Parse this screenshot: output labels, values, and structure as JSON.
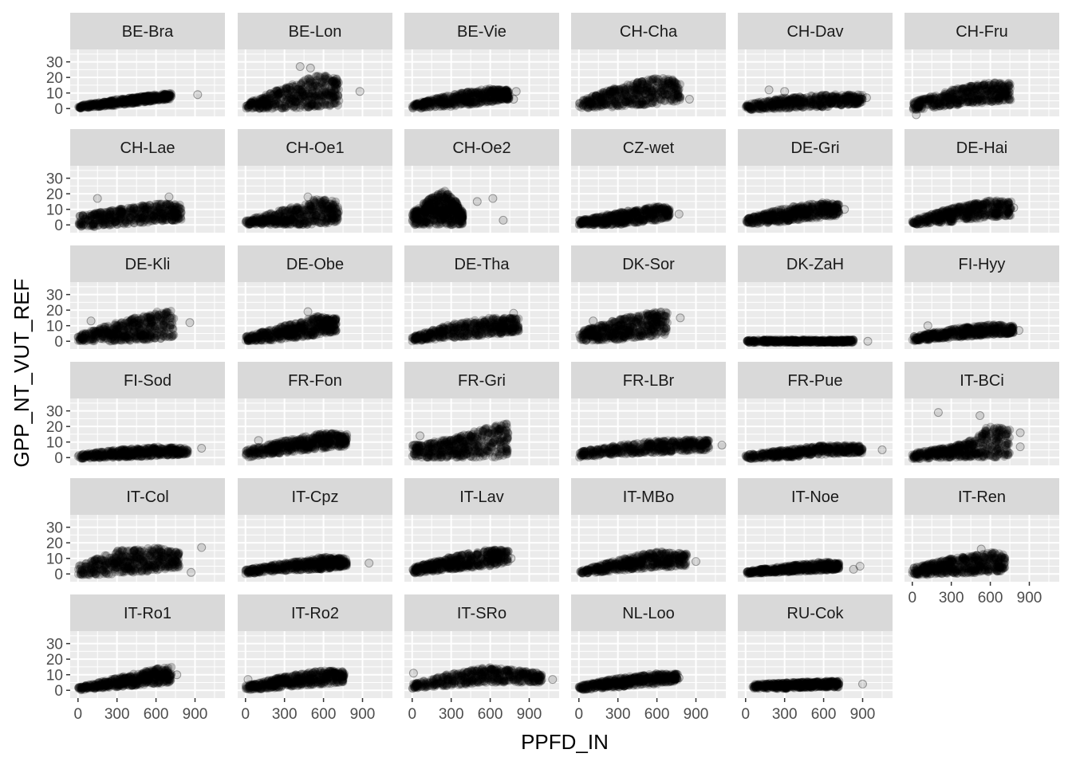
{
  "chart_data": {
    "type": "scatter",
    "title": "",
    "xlabel": "PPFD_IN",
    "ylabel": "GPP_NT_VUT_REF",
    "xlim": [
      -60,
      1130
    ],
    "ylim": [
      -5,
      38
    ],
    "x_ticks": [
      0,
      300,
      600,
      900
    ],
    "y_ticks": [
      0,
      10,
      20,
      30
    ],
    "grid": true,
    "facet_layout": "6 columns x 6 rows, free panels hidden",
    "point_color": "#000000",
    "point_alpha": 0.1,
    "panel_bg": "#ebebeb",
    "strip_bg": "#d9d9d9",
    "series": [
      {
        "name": "BE-Bra",
        "x_range": [
          0,
          900
        ],
        "envelope": [
          [
            0,
            0,
            2
          ],
          [
            300,
            2,
            6
          ],
          [
            600,
            5,
            9
          ],
          [
            720,
            6,
            10
          ]
        ],
        "outliers": [
          [
            920,
            9
          ]
        ]
      },
      {
        "name": "BE-Lon",
        "x_range": [
          0,
          900
        ],
        "envelope": [
          [
            0,
            0,
            3
          ],
          [
            300,
            0,
            14
          ],
          [
            550,
            1,
            22
          ],
          [
            720,
            2,
            20
          ]
        ],
        "outliers": [
          [
            420,
            27
          ],
          [
            500,
            26
          ],
          [
            880,
            11
          ]
        ]
      },
      {
        "name": "BE-Vie",
        "x_range": [
          0,
          900
        ],
        "envelope": [
          [
            0,
            0,
            3
          ],
          [
            300,
            1,
            9
          ],
          [
            600,
            4,
            13
          ],
          [
            750,
            6,
            12
          ]
        ],
        "outliers": [
          [
            800,
            11
          ],
          [
            780,
            6
          ]
        ]
      },
      {
        "name": "CH-Cha",
        "x_range": [
          0,
          900
        ],
        "envelope": [
          [
            0,
            0,
            5
          ],
          [
            300,
            1,
            14
          ],
          [
            600,
            3,
            20
          ],
          [
            780,
            5,
            18
          ]
        ],
        "outliers": [
          [
            850,
            6
          ]
        ]
      },
      {
        "name": "CH-Dav",
        "x_range": [
          0,
          900
        ],
        "envelope": [
          [
            0,
            -1,
            3
          ],
          [
            300,
            0,
            7
          ],
          [
            600,
            1,
            9
          ],
          [
            900,
            3,
            9
          ]
        ],
        "outliers": [
          [
            180,
            12
          ],
          [
            300,
            11
          ],
          [
            930,
            7
          ]
        ]
      },
      {
        "name": "CH-Fru",
        "x_range": [
          0,
          900
        ],
        "envelope": [
          [
            0,
            -1,
            4
          ],
          [
            300,
            2,
            12
          ],
          [
            600,
            4,
            17
          ],
          [
            760,
            5,
            17
          ]
        ],
        "outliers": [
          [
            30,
            -4
          ]
        ]
      },
      {
        "name": "CH-Lae",
        "x_range": [
          0,
          900
        ],
        "envelope": [
          [
            0,
            -2,
            6
          ],
          [
            300,
            0,
            10
          ],
          [
            600,
            2,
            14
          ],
          [
            800,
            3,
            13
          ]
        ],
        "outliers": [
          [
            150,
            17
          ],
          [
            700,
            18
          ]
        ]
      },
      {
        "name": "CH-Oe1",
        "x_range": [
          0,
          900
        ],
        "envelope": [
          [
            0,
            0,
            3
          ],
          [
            300,
            0,
            10
          ],
          [
            550,
            0,
            17
          ],
          [
            720,
            2,
            15
          ]
        ],
        "outliers": [
          [
            480,
            18
          ]
        ]
      },
      {
        "name": "CH-Oe2",
        "x_range": [
          0,
          900
        ],
        "envelope": [
          [
            0,
            0,
            8
          ],
          [
            150,
            0,
            18
          ],
          [
            250,
            0,
            22
          ],
          [
            330,
            0,
            16
          ],
          [
            390,
            0,
            8
          ]
        ],
        "outliers": [
          [
            500,
            15
          ],
          [
            620,
            17
          ],
          [
            700,
            3
          ]
        ]
      },
      {
        "name": "CZ-wet",
        "x_range": [
          0,
          900
        ],
        "envelope": [
          [
            0,
            0,
            3
          ],
          [
            300,
            0,
            8
          ],
          [
            600,
            3,
            12
          ],
          [
            700,
            5,
            11
          ]
        ],
        "outliers": [
          [
            770,
            7
          ]
        ]
      },
      {
        "name": "DE-Gri",
        "x_range": [
          0,
          900
        ],
        "envelope": [
          [
            0,
            0,
            4
          ],
          [
            300,
            2,
            11
          ],
          [
            600,
            5,
            15
          ],
          [
            720,
            6,
            14
          ]
        ],
        "outliers": [
          [
            760,
            10
          ]
        ]
      },
      {
        "name": "DE-Hai",
        "x_range": [
          0,
          900
        ],
        "envelope": [
          [
            0,
            0,
            3
          ],
          [
            300,
            2,
            11
          ],
          [
            600,
            5,
            16
          ],
          [
            760,
            6,
            15
          ]
        ],
        "outliers": [
          [
            780,
            11
          ]
        ]
      },
      {
        "name": "DE-Kli",
        "x_range": [
          0,
          900
        ],
        "envelope": [
          [
            0,
            0,
            4
          ],
          [
            300,
            0,
            12
          ],
          [
            600,
            1,
            19
          ],
          [
            740,
            2,
            20
          ]
        ],
        "outliers": [
          [
            100,
            13
          ],
          [
            860,
            12
          ]
        ]
      },
      {
        "name": "DE-Obe",
        "x_range": [
          0,
          900
        ],
        "envelope": [
          [
            0,
            0,
            3
          ],
          [
            300,
            1,
            10
          ],
          [
            550,
            4,
            16
          ],
          [
            700,
            6,
            15
          ]
        ],
        "outliers": [
          [
            480,
            19
          ]
        ]
      },
      {
        "name": "DE-Tha",
        "x_range": [
          0,
          900
        ],
        "envelope": [
          [
            0,
            0,
            3
          ],
          [
            300,
            2,
            11
          ],
          [
            600,
            4,
            15
          ],
          [
            820,
            6,
            15
          ]
        ],
        "outliers": [
          [
            780,
            18
          ]
        ]
      },
      {
        "name": "DK-Sor",
        "x_range": [
          0,
          900
        ],
        "envelope": [
          [
            0,
            0,
            6
          ],
          [
            300,
            1,
            14
          ],
          [
            550,
            3,
            19
          ],
          [
            680,
            4,
            19
          ]
        ],
        "outliers": [
          [
            110,
            13
          ],
          [
            780,
            15
          ]
        ]
      },
      {
        "name": "DK-ZaH",
        "x_range": [
          0,
          900
        ],
        "envelope": [
          [
            0,
            -1,
            1
          ],
          [
            300,
            -1,
            1
          ],
          [
            600,
            -1,
            1
          ],
          [
            830,
            -1,
            1
          ]
        ],
        "outliers": [
          [
            940,
            0
          ]
        ]
      },
      {
        "name": "FI-Hyy",
        "x_range": [
          0,
          900
        ],
        "envelope": [
          [
            0,
            0,
            3
          ],
          [
            300,
            2,
            8
          ],
          [
            600,
            4,
            11
          ],
          [
            780,
            5,
            10
          ]
        ],
        "outliers": [
          [
            120,
            10
          ],
          [
            820,
            7
          ]
        ]
      },
      {
        "name": "FI-Sod",
        "x_range": [
          0,
          900
        ],
        "envelope": [
          [
            0,
            -1,
            2
          ],
          [
            300,
            0,
            5
          ],
          [
            600,
            1,
            7
          ],
          [
            850,
            2,
            6
          ]
        ],
        "outliers": [
          [
            950,
            6
          ]
        ]
      },
      {
        "name": "FR-Fon",
        "x_range": [
          0,
          900
        ],
        "envelope": [
          [
            0,
            0,
            5
          ],
          [
            300,
            3,
            11
          ],
          [
            600,
            6,
            16
          ],
          [
            780,
            7,
            15
          ]
        ],
        "outliers": [
          [
            100,
            11
          ]
        ]
      },
      {
        "name": "FR-Gri",
        "x_range": [
          0,
          900
        ],
        "envelope": [
          [
            0,
            0,
            8
          ],
          [
            300,
            0,
            12
          ],
          [
            600,
            0,
            20
          ],
          [
            740,
            1,
            22
          ]
        ],
        "outliers": [
          [
            20,
            8
          ],
          [
            60,
            14
          ]
        ]
      },
      {
        "name": "FR-LBr",
        "x_range": [
          0,
          900
        ],
        "envelope": [
          [
            0,
            0,
            4
          ],
          [
            300,
            2,
            8
          ],
          [
            600,
            3,
            11
          ],
          [
            1000,
            5,
            12
          ]
        ],
        "outliers": [
          [
            1100,
            8
          ]
        ]
      },
      {
        "name": "FR-Pue",
        "x_range": [
          0,
          900
        ],
        "envelope": [
          [
            0,
            -1,
            2
          ],
          [
            300,
            0,
            5
          ],
          [
            600,
            2,
            8
          ],
          [
            900,
            3,
            8
          ]
        ],
        "outliers": [
          [
            1050,
            5
          ]
        ]
      },
      {
        "name": "IT-BCi",
        "x_range": [
          0,
          900
        ],
        "envelope": [
          [
            0,
            -1,
            3
          ],
          [
            300,
            0,
            7
          ],
          [
            480,
            0,
            12
          ],
          [
            600,
            0,
            22
          ],
          [
            750,
            1,
            18
          ]
        ],
        "outliers": [
          [
            200,
            29
          ],
          [
            520,
            27
          ],
          [
            830,
            16
          ],
          [
            830,
            7
          ]
        ]
      },
      {
        "name": "IT-Col",
        "x_range": [
          0,
          900
        ],
        "envelope": [
          [
            0,
            -1,
            5
          ],
          [
            300,
            0,
            15
          ],
          [
            600,
            2,
            17
          ],
          [
            780,
            4,
            14
          ]
        ],
        "outliers": [
          [
            950,
            17
          ],
          [
            870,
            1
          ]
        ]
      },
      {
        "name": "IT-Cpz",
        "x_range": [
          0,
          900
        ],
        "envelope": [
          [
            0,
            0,
            3
          ],
          [
            300,
            2,
            7
          ],
          [
            600,
            3,
            11
          ],
          [
            780,
            5,
            10
          ]
        ],
        "outliers": [
          [
            950,
            7
          ]
        ]
      },
      {
        "name": "IT-Lav",
        "x_range": [
          0,
          900
        ],
        "envelope": [
          [
            0,
            0,
            4
          ],
          [
            300,
            3,
            11
          ],
          [
            600,
            5,
            16
          ],
          [
            740,
            7,
            15
          ]
        ],
        "outliers": [
          [
            760,
            10
          ]
        ]
      },
      {
        "name": "IT-MBo",
        "x_range": [
          0,
          900
        ],
        "envelope": [
          [
            0,
            0,
            2
          ],
          [
            300,
            2,
            9
          ],
          [
            600,
            4,
            15
          ],
          [
            830,
            5,
            13
          ]
        ],
        "outliers": [
          [
            900,
            8
          ]
        ]
      },
      {
        "name": "IT-Noe",
        "x_range": [
          0,
          900
        ],
        "envelope": [
          [
            0,
            0,
            2
          ],
          [
            300,
            1,
            5
          ],
          [
            600,
            2,
            8
          ],
          [
            720,
            3,
            7
          ]
        ],
        "outliers": [
          [
            880,
            5
          ],
          [
            830,
            3
          ]
        ]
      },
      {
        "name": "IT-Ren",
        "x_range": [
          0,
          900
        ],
        "envelope": [
          [
            0,
            -1,
            4
          ],
          [
            300,
            0,
            10
          ],
          [
            600,
            1,
            14
          ],
          [
            720,
            2,
            13
          ]
        ],
        "outliers": [
          [
            530,
            16
          ]
        ]
      },
      {
        "name": "IT-Ro1",
        "x_range": [
          0,
          900
        ],
        "envelope": [
          [
            0,
            0,
            2
          ],
          [
            300,
            2,
            8
          ],
          [
            600,
            4,
            14
          ],
          [
            720,
            5,
            15
          ]
        ],
        "outliers": [
          [
            760,
            10
          ]
        ]
      },
      {
        "name": "IT-Ro2",
        "x_range": [
          0,
          900
        ],
        "envelope": [
          [
            0,
            0,
            3
          ],
          [
            300,
            2,
            9
          ],
          [
            600,
            4,
            13
          ],
          [
            760,
            5,
            12
          ]
        ],
        "outliers": [
          [
            20,
            7
          ]
        ]
      },
      {
        "name": "IT-SRo",
        "x_range": [
          0,
          900
        ],
        "envelope": [
          [
            0,
            1,
            4
          ],
          [
            300,
            3,
            11
          ],
          [
            600,
            5,
            15
          ],
          [
            1000,
            5,
            11
          ]
        ],
        "outliers": [
          [
            10,
            11
          ],
          [
            1080,
            7
          ]
        ]
      },
      {
        "name": "NL-Loo",
        "x_range": [
          0,
          900
        ],
        "envelope": [
          [
            0,
            0,
            3
          ],
          [
            300,
            2,
            8
          ],
          [
            600,
            4,
            11
          ],
          [
            760,
            6,
            11
          ]
        ],
        "outliers": [
          [
            770,
            8
          ]
        ]
      },
      {
        "name": "RU-Cok",
        "x_range": [
          0,
          900
        ],
        "envelope": [
          [
            50,
            1,
            4
          ],
          [
            300,
            1,
            5
          ],
          [
            600,
            2,
            6
          ],
          [
            720,
            2,
            6
          ]
        ],
        "outliers": [
          [
            900,
            4
          ]
        ]
      }
    ]
  }
}
